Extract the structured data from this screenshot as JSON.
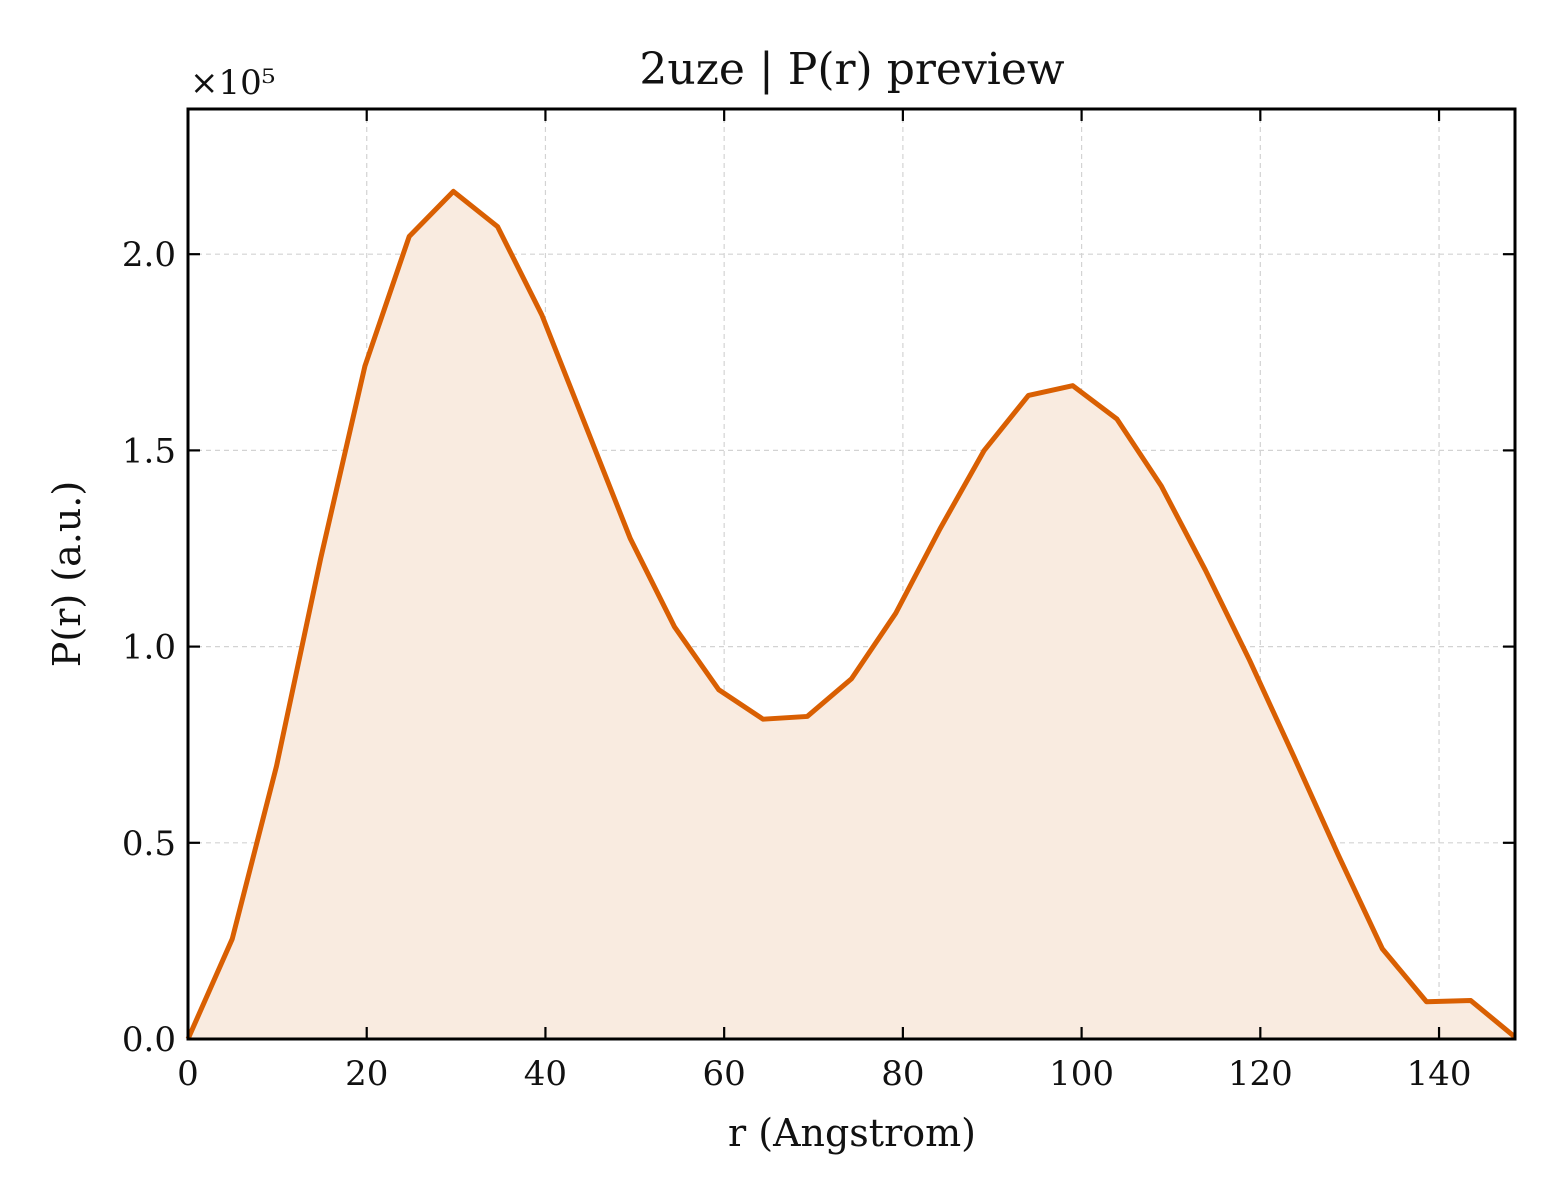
{
  "chart_data": {
    "type": "area",
    "title": "2uze | P(r) preview",
    "xlabel": "r (Angstrom)",
    "ylabel": "P(r) (a.u.)",
    "y_offset_label": "×10⁵",
    "y_scale": 100000,
    "xlim": [
      0,
      148.5
    ],
    "ylim": [
      0,
      2.37
    ],
    "xticks": [
      0,
      20,
      40,
      60,
      80,
      100,
      120,
      140
    ],
    "yticks": [
      0.0,
      0.5,
      1.0,
      1.5,
      2.0
    ],
    "xtick_labels": [
      "0",
      "20",
      "40",
      "60",
      "80",
      "100",
      "120",
      "140"
    ],
    "ytick_labels": [
      "0.0",
      "0.5",
      "1.0",
      "1.5",
      "2.0"
    ],
    "grid": true,
    "line_color": "#d95f02",
    "fill_color": "#f9ebe0",
    "series": [
      {
        "x": [
          0,
          4.95,
          9.9,
          14.85,
          19.8,
          24.75,
          29.7,
          34.65,
          39.6,
          44.55,
          49.5,
          54.45,
          59.4,
          64.35,
          69.3,
          74.25,
          79.2,
          84.15,
          89.1,
          94.05,
          99.0,
          103.95,
          108.9,
          113.85,
          118.8,
          123.75,
          128.7,
          133.65,
          138.6,
          143.55,
          148.5
        ],
        "y": [
          0.0,
          0.255,
          0.695,
          1.225,
          1.715,
          2.045,
          2.16,
          2.07,
          1.845,
          1.56,
          1.275,
          1.05,
          0.89,
          0.815,
          0.822,
          0.918,
          1.085,
          1.3,
          1.5,
          1.64,
          1.665,
          1.58,
          1.41,
          1.195,
          0.965,
          0.72,
          0.47,
          0.23,
          0.095,
          0.098,
          0.005
        ]
      }
    ]
  }
}
